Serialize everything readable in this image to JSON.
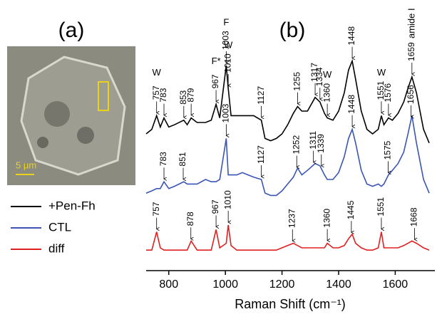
{
  "panels": [
    "(a)",
    "(b)"
  ],
  "image": {
    "scale_bar": "5 µm"
  },
  "chart_data": {
    "type": "line",
    "xlabel": "Raman Shift (cm⁻¹)",
    "xlim": [
      720,
      1740
    ],
    "xticks": [
      800,
      1000,
      1200,
      1400,
      1600
    ],
    "ylim": [
      0,
      100
    ],
    "legend": "bottom-left",
    "x": [
      720,
      740,
      757,
      770,
      783,
      800,
      820,
      853,
      865,
      879,
      900,
      930,
      950,
      967,
      980,
      1003,
      1010,
      1020,
      1040,
      1060,
      1080,
      1100,
      1127,
      1140,
      1160,
      1180,
      1200,
      1220,
      1240,
      1255,
      1270,
      1290,
      1317,
      1334,
      1350,
      1360,
      1380,
      1400,
      1420,
      1435,
      1448,
      1460,
      1480,
      1500,
      1520,
      1540,
      1551,
      1560,
      1576,
      1590,
      1610,
      1630,
      1645,
      1659,
      1675,
      1700,
      1720
    ],
    "series": [
      {
        "name": "+Pen-Fh",
        "color": "#000000",
        "values": [
          60,
          62,
          68,
          63,
          67,
          63,
          64,
          66,
          64,
          67,
          65,
          65,
          66,
          73,
          67,
          90,
          80,
          68,
          68,
          68,
          68,
          68,
          66,
          58,
          57,
          58,
          60,
          64,
          69,
          72,
          70,
          70,
          76,
          74,
          69,
          67,
          66,
          70,
          78,
          88,
          92,
          84,
          70,
          62,
          60,
          62,
          68,
          64,
          67,
          66,
          69,
          74,
          80,
          85,
          78,
          62,
          56
        ],
        "peaks": [
          757,
          783,
          853,
          879,
          967,
          1003,
          1010,
          1127,
          1255,
          1317,
          1334,
          1360,
          1448,
          1551,
          1576,
          1659
        ],
        "annotations": [
          {
            "text": "W",
            "x": 757
          },
          {
            "text": "F*",
            "x": 967
          },
          {
            "text": "F",
            "x": 1003
          },
          {
            "text": "W",
            "x": 1010
          },
          {
            "text": "W",
            "x": 1360
          },
          {
            "text": "W",
            "x": 1551
          },
          {
            "text": "amide I",
            "x": 1659
          }
        ]
      },
      {
        "name": "CTL",
        "color": "#3a55b4",
        "values": [
          34,
          35,
          36,
          36,
          39,
          36,
          37,
          39,
          38,
          38,
          38,
          40,
          39,
          39,
          40,
          58,
          42,
          42,
          42,
          43,
          42,
          41,
          40,
          34,
          33,
          33,
          35,
          38,
          41,
          45,
          42,
          44,
          47,
          46,
          42,
          40,
          40,
          43,
          50,
          58,
          62,
          56,
          44,
          38,
          37,
          38,
          37,
          38,
          42,
          44,
          47,
          52,
          60,
          68,
          56,
          40,
          34
        ],
        "peaks": [
          783,
          851,
          1003,
          1127,
          1252,
          1311,
          1339,
          1448,
          1575,
          1656
        ]
      },
      {
        "name": "diff",
        "color": "#e02020",
        "values": [
          9,
          9,
          17,
          10,
          9,
          9,
          9,
          9,
          9,
          13,
          9,
          9,
          9,
          18,
          10,
          12,
          20,
          11,
          9,
          9,
          9,
          9,
          9,
          9,
          9,
          9,
          10,
          11,
          12,
          11,
          10,
          10,
          10,
          10,
          10,
          12,
          10,
          10,
          11,
          14,
          16,
          12,
          10,
          9,
          9,
          10,
          17,
          10,
          10,
          10,
          10,
          11,
          12,
          13,
          12,
          10,
          9
        ],
        "peaks": [
          757,
          878,
          967,
          1010,
          1237,
          1360,
          1445,
          1551,
          1668
        ]
      }
    ]
  }
}
